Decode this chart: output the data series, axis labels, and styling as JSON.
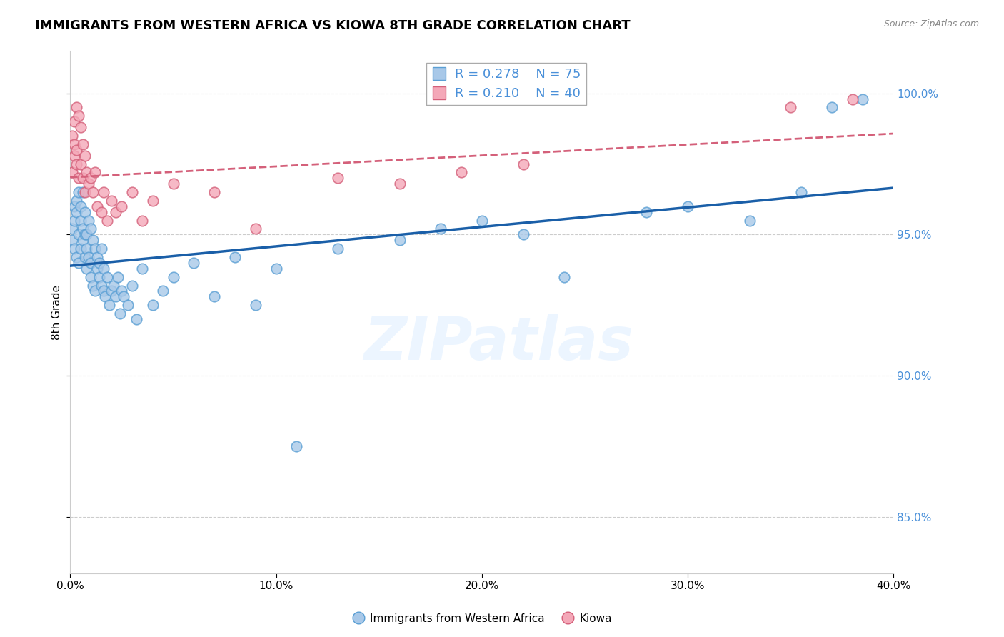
{
  "title": "IMMIGRANTS FROM WESTERN AFRICA VS KIOWA 8TH GRADE CORRELATION CHART",
  "source_text": "Source: ZipAtlas.com",
  "ylabel": "8th Grade",
  "xmin": 0.0,
  "xmax": 0.4,
  "ymin": 83.0,
  "ymax": 101.5,
  "yticks": [
    85.0,
    90.0,
    95.0,
    100.0
  ],
  "xticks": [
    0.0,
    0.1,
    0.2,
    0.3,
    0.4
  ],
  "blue_color": "#a8c8e8",
  "blue_edge": "#5a9fd4",
  "pink_color": "#f4a8b8",
  "pink_edge": "#d4607a",
  "trend_blue": "#1a5fa8",
  "trend_pink": "#d4607a",
  "R_blue": 0.278,
  "N_blue": 75,
  "R_pink": 0.21,
  "N_pink": 40,
  "legend_label_blue": "Immigrants from Western Africa",
  "legend_label_pink": "Kiowa",
  "watermark": "ZIPatlas",
  "title_fontsize": 13,
  "label_fontsize": 11,
  "tick_fontsize": 11,
  "axis_color": "#4a90d9",
  "blue_scatter_x": [
    0.001,
    0.001,
    0.002,
    0.002,
    0.002,
    0.003,
    0.003,
    0.003,
    0.004,
    0.004,
    0.004,
    0.005,
    0.005,
    0.005,
    0.006,
    0.006,
    0.006,
    0.007,
    0.007,
    0.007,
    0.008,
    0.008,
    0.008,
    0.009,
    0.009,
    0.01,
    0.01,
    0.01,
    0.011,
    0.011,
    0.012,
    0.012,
    0.013,
    0.013,
    0.014,
    0.014,
    0.015,
    0.015,
    0.016,
    0.016,
    0.017,
    0.018,
    0.019,
    0.02,
    0.021,
    0.022,
    0.023,
    0.024,
    0.025,
    0.026,
    0.028,
    0.03,
    0.032,
    0.035,
    0.04,
    0.045,
    0.05,
    0.06,
    0.07,
    0.08,
    0.09,
    0.1,
    0.11,
    0.13,
    0.16,
    0.18,
    0.2,
    0.22,
    0.24,
    0.28,
    0.3,
    0.33,
    0.355,
    0.37,
    0.385
  ],
  "blue_scatter_y": [
    95.2,
    94.8,
    96.0,
    95.5,
    94.5,
    95.8,
    96.2,
    94.2,
    96.5,
    95.0,
    94.0,
    95.5,
    96.0,
    94.5,
    95.2,
    94.8,
    96.5,
    95.0,
    94.2,
    95.8,
    94.5,
    95.0,
    93.8,
    94.2,
    95.5,
    94.0,
    95.2,
    93.5,
    94.8,
    93.2,
    94.5,
    93.0,
    94.2,
    93.8,
    93.5,
    94.0,
    93.2,
    94.5,
    93.0,
    93.8,
    92.8,
    93.5,
    92.5,
    93.0,
    93.2,
    92.8,
    93.5,
    92.2,
    93.0,
    92.8,
    92.5,
    93.2,
    92.0,
    93.8,
    92.5,
    93.0,
    93.5,
    94.0,
    92.8,
    94.2,
    92.5,
    93.8,
    87.5,
    94.5,
    94.8,
    95.2,
    95.5,
    95.0,
    93.5,
    95.8,
    96.0,
    95.5,
    96.5,
    99.5,
    99.8
  ],
  "pink_scatter_x": [
    0.001,
    0.001,
    0.002,
    0.002,
    0.002,
    0.003,
    0.003,
    0.003,
    0.004,
    0.004,
    0.005,
    0.005,
    0.006,
    0.006,
    0.007,
    0.007,
    0.008,
    0.009,
    0.01,
    0.011,
    0.012,
    0.013,
    0.015,
    0.016,
    0.018,
    0.02,
    0.022,
    0.025,
    0.03,
    0.035,
    0.04,
    0.05,
    0.07,
    0.09,
    0.13,
    0.16,
    0.19,
    0.22,
    0.35,
    0.38
  ],
  "pink_scatter_y": [
    98.5,
    97.2,
    99.0,
    97.8,
    98.2,
    99.5,
    98.0,
    97.5,
    99.2,
    97.0,
    98.8,
    97.5,
    98.2,
    97.0,
    97.8,
    96.5,
    97.2,
    96.8,
    97.0,
    96.5,
    97.2,
    96.0,
    95.8,
    96.5,
    95.5,
    96.2,
    95.8,
    96.0,
    96.5,
    95.5,
    96.2,
    96.8,
    96.5,
    95.2,
    97.0,
    96.8,
    97.2,
    97.5,
    99.5,
    99.8
  ]
}
